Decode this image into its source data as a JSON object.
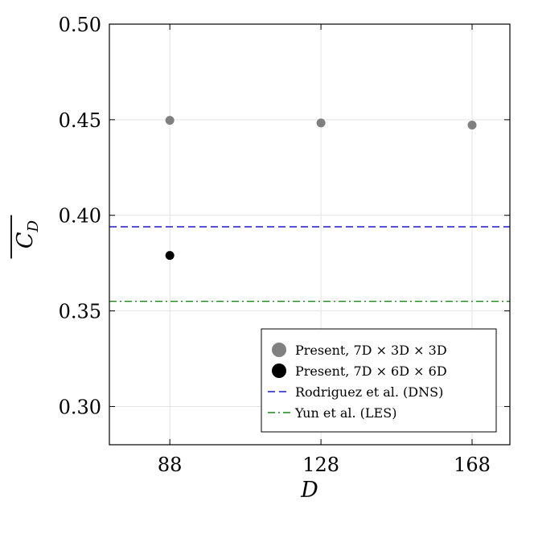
{
  "chart_data": {
    "type": "scatter",
    "title": "",
    "xlabel": "D",
    "ylabel": "C_D",
    "xlim": [
      72,
      178
    ],
    "ylim": [
      0.28,
      0.5
    ],
    "x_ticks": [
      88,
      128,
      168
    ],
    "y_ticks": [
      0.3,
      0.35,
      0.4,
      0.45,
      0.5
    ],
    "x_tick_labels": [
      "88",
      "128",
      "168"
    ],
    "y_tick_labels": [
      "0.30",
      "0.35",
      "0.40",
      "0.45",
      "0.50"
    ],
    "grid": true,
    "legend_position": "bottom-right",
    "series": [
      {
        "name": "Present, 7D × 3D × 3D",
        "kind": "marker",
        "color": "#808080",
        "points": [
          {
            "x": 88,
            "y": 0.4497
          },
          {
            "x": 128,
            "y": 0.4483
          },
          {
            "x": 168,
            "y": 0.4472
          }
        ]
      },
      {
        "name": "Present, 7D × 6D × 6D",
        "kind": "marker",
        "color": "#000000",
        "points": [
          {
            "x": 88,
            "y": 0.379
          }
        ]
      },
      {
        "name": "Rodriguez et al. (DNS)",
        "kind": "hline",
        "style": "dashed",
        "color": "#1a1acc",
        "y": 0.394
      },
      {
        "name": "Yun et al. (LES)",
        "kind": "hline",
        "style": "dashdot",
        "color": "#1a8a1a",
        "y": 0.355
      }
    ]
  }
}
